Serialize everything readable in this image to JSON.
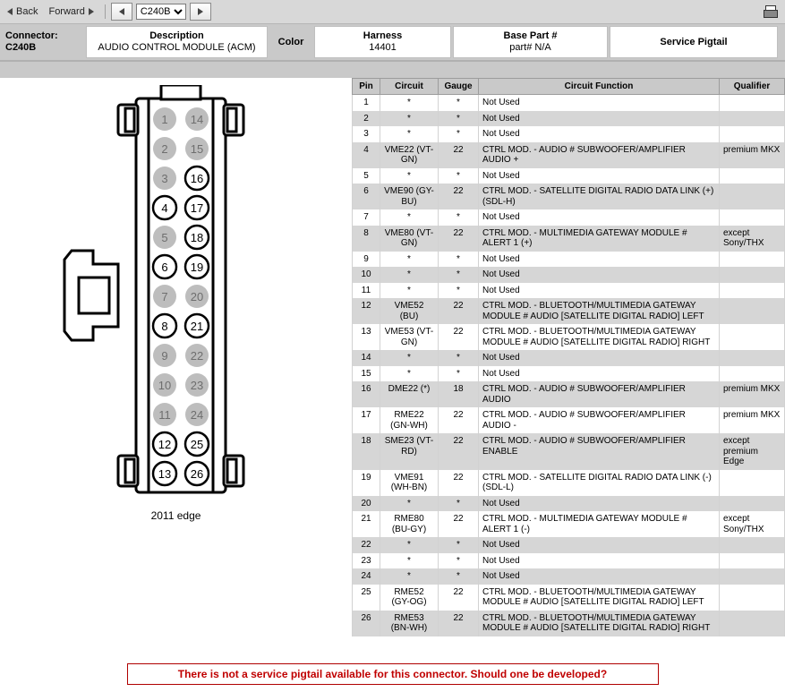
{
  "toolbar": {
    "back": "Back",
    "forward": "Forward",
    "select_value": "C240B"
  },
  "header": {
    "connector_label": "Connector:",
    "connector_id": "C240B",
    "description_label": "Description",
    "description_value": "AUDIO CONTROL MODULE (ACM)",
    "color_label": "Color",
    "harness_label": "Harness",
    "harness_value": "14401",
    "basepart_label": "Base Part #",
    "basepart_value": "part# N/A",
    "pigtail_label": "Service Pigtail"
  },
  "diagram": {
    "caption": "2011 edge",
    "pin_cols": [
      [
        1,
        2,
        3,
        4,
        5,
        6,
        7,
        8,
        9,
        10,
        11,
        12,
        13
      ],
      [
        14,
        15,
        16,
        17,
        18,
        19,
        20,
        21,
        22,
        23,
        24,
        25,
        26
      ]
    ],
    "grey_pins": [
      1,
      2,
      3,
      5,
      7,
      9,
      10,
      11,
      14,
      15,
      20,
      22,
      23,
      24
    ]
  },
  "table": {
    "headers": {
      "pin": "Pin",
      "circuit": "Circuit",
      "gauge": "Gauge",
      "func": "Circuit Function",
      "qual": "Qualifier"
    },
    "rows": [
      {
        "pin": "1",
        "circuit": "*",
        "gauge": "*",
        "func": "Not Used",
        "qual": ""
      },
      {
        "pin": "2",
        "circuit": "*",
        "gauge": "*",
        "func": "Not Used",
        "qual": ""
      },
      {
        "pin": "3",
        "circuit": "*",
        "gauge": "*",
        "func": "Not Used",
        "qual": ""
      },
      {
        "pin": "4",
        "circuit": "VME22 (VT-GN)",
        "gauge": "22",
        "func": "CTRL MOD. - AUDIO # SUBWOOFER/AMPLIFIER AUDIO +",
        "qual": "premium MKX"
      },
      {
        "pin": "5",
        "circuit": "*",
        "gauge": "*",
        "func": "Not Used",
        "qual": ""
      },
      {
        "pin": "6",
        "circuit": "VME90 (GY-BU)",
        "gauge": "22",
        "func": "CTRL MOD. - SATELLITE DIGITAL RADIO DATA LINK (+) (SDL-H)",
        "qual": ""
      },
      {
        "pin": "7",
        "circuit": "*",
        "gauge": "*",
        "func": "Not Used",
        "qual": ""
      },
      {
        "pin": "8",
        "circuit": "VME80 (VT-GN)",
        "gauge": "22",
        "func": "CTRL MOD. - MULTIMEDIA GATEWAY MODULE # ALERT 1 (+)",
        "qual": "except Sony/THX"
      },
      {
        "pin": "9",
        "circuit": "*",
        "gauge": "*",
        "func": "Not Used",
        "qual": ""
      },
      {
        "pin": "10",
        "circuit": "*",
        "gauge": "*",
        "func": "Not Used",
        "qual": ""
      },
      {
        "pin": "11",
        "circuit": "*",
        "gauge": "*",
        "func": "Not Used",
        "qual": ""
      },
      {
        "pin": "12",
        "circuit": "VME52 (BU)",
        "gauge": "22",
        "func": "CTRL MOD. - BLUETOOTH/MULTIMEDIA GATEWAY MODULE # AUDIO [SATELLITE DIGITAL RADIO] LEFT",
        "qual": ""
      },
      {
        "pin": "13",
        "circuit": "VME53 (VT-GN)",
        "gauge": "22",
        "func": "CTRL MOD. - BLUETOOTH/MULTIMEDIA GATEWAY MODULE # AUDIO [SATELLITE DIGITAL RADIO] RIGHT",
        "qual": ""
      },
      {
        "pin": "14",
        "circuit": "*",
        "gauge": "*",
        "func": "Not Used",
        "qual": ""
      },
      {
        "pin": "15",
        "circuit": "*",
        "gauge": "*",
        "func": "Not Used",
        "qual": ""
      },
      {
        "pin": "16",
        "circuit": "DME22 (*)",
        "gauge": "18",
        "func": "CTRL MOD. - AUDIO # SUBWOOFER/AMPLIFIER AUDIO",
        "qual": "premium MKX"
      },
      {
        "pin": "17",
        "circuit": "RME22 (GN-WH)",
        "gauge": "22",
        "func": "CTRL MOD. - AUDIO # SUBWOOFER/AMPLIFIER AUDIO -",
        "qual": "premium MKX"
      },
      {
        "pin": "18",
        "circuit": "SME23 (VT-RD)",
        "gauge": "22",
        "func": "CTRL MOD. - AUDIO # SUBWOOFER/AMPLIFIER ENABLE",
        "qual": "except premium Edge"
      },
      {
        "pin": "19",
        "circuit": "VME91 (WH-BN)",
        "gauge": "22",
        "func": "CTRL MOD. - SATELLITE DIGITAL RADIO DATA LINK (-) (SDL-L)",
        "qual": ""
      },
      {
        "pin": "20",
        "circuit": "*",
        "gauge": "*",
        "func": "Not Used",
        "qual": ""
      },
      {
        "pin": "21",
        "circuit": "RME80 (BU-GY)",
        "gauge": "22",
        "func": "CTRL MOD. - MULTIMEDIA GATEWAY MODULE # ALERT 1 (-)",
        "qual": "except Sony/THX"
      },
      {
        "pin": "22",
        "circuit": "*",
        "gauge": "*",
        "func": "Not Used",
        "qual": ""
      },
      {
        "pin": "23",
        "circuit": "*",
        "gauge": "*",
        "func": "Not Used",
        "qual": ""
      },
      {
        "pin": "24",
        "circuit": "*",
        "gauge": "*",
        "func": "Not Used",
        "qual": ""
      },
      {
        "pin": "25",
        "circuit": "RME52 (GY-OG)",
        "gauge": "22",
        "func": "CTRL MOD. - BLUETOOTH/MULTIMEDIA GATEWAY MODULE # AUDIO [SATELLITE DIGITAL RADIO] LEFT",
        "qual": ""
      },
      {
        "pin": "26",
        "circuit": "RME53 (BN-WH)",
        "gauge": "22",
        "func": "CTRL MOD. - BLUETOOTH/MULTIMEDIA GATEWAY MODULE # AUDIO [SATELLITE DIGITAL RADIO] RIGHT",
        "qual": ""
      }
    ]
  },
  "footer": {
    "note": "There is not a service pigtail available for this connector. Should one be developed?"
  }
}
